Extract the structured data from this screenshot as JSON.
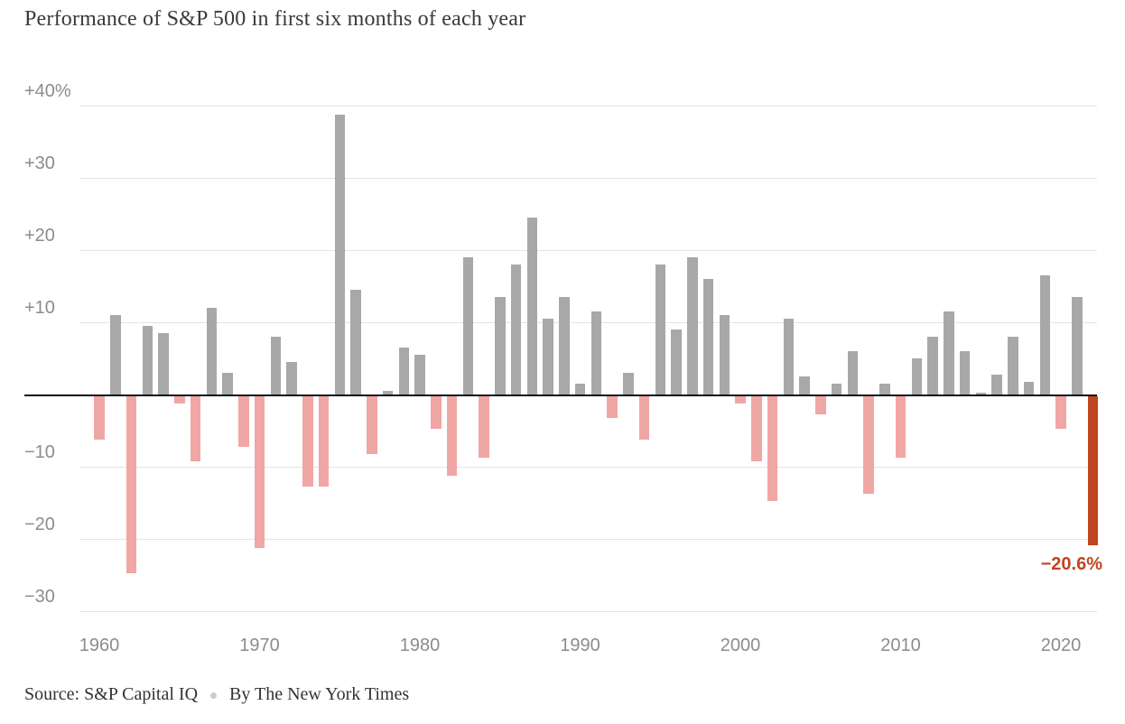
{
  "chart_data": {
    "type": "bar",
    "title": "Performance of S&P 500 in first six months of each year",
    "unit": "percent",
    "grid": true,
    "categories": [
      1960,
      1961,
      1962,
      1963,
      1964,
      1965,
      1966,
      1967,
      1968,
      1969,
      1970,
      1971,
      1972,
      1973,
      1974,
      1975,
      1976,
      1977,
      1978,
      1979,
      1980,
      1981,
      1982,
      1983,
      1984,
      1985,
      1986,
      1987,
      1988,
      1989,
      1990,
      1991,
      1992,
      1993,
      1994,
      1995,
      1996,
      1997,
      1998,
      1999,
      2000,
      2001,
      2002,
      2003,
      2004,
      2005,
      2006,
      2007,
      2008,
      2009,
      2010,
      2011,
      2012,
      2013,
      2014,
      2015,
      2016,
      2017,
      2018,
      2019,
      2020,
      2021,
      2022
    ],
    "values": [
      -6,
      11,
      -24.5,
      9.5,
      8.5,
      -1,
      -9,
      12,
      3,
      -7,
      -21,
      8,
      4.5,
      -12.5,
      -12.5,
      38.8,
      14.5,
      -8,
      0.5,
      6.5,
      5.5,
      -4.5,
      -11,
      19,
      -8.5,
      13.5,
      18,
      24.5,
      10.5,
      13.5,
      1.5,
      11.5,
      -3,
      3,
      -6,
      18,
      9,
      19,
      16,
      11,
      -1,
      -9,
      -14.5,
      10.5,
      2.5,
      -2.5,
      1.5,
      6,
      -13.5,
      1.5,
      -8.5,
      5,
      8,
      11.5,
      6,
      0.3,
      2.7,
      8,
      1.7,
      16.5,
      -4.5,
      13.5,
      -20.6
    ],
    "highlight_year": 2022,
    "annotation": {
      "text": "−20.6%",
      "year": 2022
    },
    "y_axis": {
      "range": [
        -30,
        40
      ],
      "ticks": [
        {
          "label": "+40%",
          "value": 40
        },
        {
          "label": "+30",
          "value": 30
        },
        {
          "label": "+20",
          "value": 20
        },
        {
          "label": "+10",
          "value": 10
        },
        {
          "label": "−10",
          "value": -10
        },
        {
          "label": "−20",
          "value": -20
        },
        {
          "label": "−30",
          "value": -30
        }
      ]
    },
    "x_axis": {
      "ticks": [
        1960,
        1970,
        1980,
        1990,
        2000,
        2010,
        2020
      ]
    },
    "colors": {
      "positive": "#a8a8a8",
      "negative": "#f0a6a4",
      "highlight": "#c0451e",
      "gridline": "#e4e4e4",
      "baseline": "#111111"
    }
  },
  "footer": {
    "source": "Source: S&P Capital IQ",
    "byline": "By The New York Times"
  }
}
